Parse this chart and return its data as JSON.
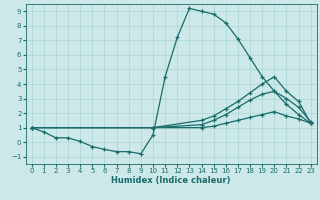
{
  "xlabel": "Humidex (Indice chaleur)",
  "bg_color": "#cce8e8",
  "line_color": "#1a6b6b",
  "grid_color": "#b0d8d8",
  "xlim": [
    -0.5,
    23.5
  ],
  "ylim": [
    -1.5,
    9.5
  ],
  "xticks": [
    0,
    1,
    2,
    3,
    4,
    5,
    6,
    7,
    8,
    9,
    10,
    11,
    12,
    13,
    14,
    15,
    16,
    17,
    18,
    19,
    20,
    21,
    22,
    23
  ],
  "yticks": [
    -1,
    0,
    1,
    2,
    3,
    4,
    5,
    6,
    7,
    8,
    9
  ],
  "curves": [
    {
      "x": [
        0,
        1,
        2,
        3,
        4,
        5,
        6,
        7,
        8,
        9,
        10,
        11,
        12,
        13,
        14,
        15,
        16,
        17,
        18,
        19,
        20,
        21,
        22,
        23
      ],
      "y": [
        1.0,
        0.7,
        0.3,
        0.3,
        0.05,
        -0.3,
        -0.5,
        -0.65,
        -0.65,
        -0.8,
        0.5,
        4.5,
        7.2,
        9.2,
        9.0,
        8.8,
        8.2,
        7.1,
        5.8,
        4.5,
        3.5,
        2.6,
        1.9,
        1.3
      ]
    },
    {
      "x": [
        0,
        10,
        14,
        15,
        16,
        17,
        18,
        19,
        20,
        21,
        22,
        23
      ],
      "y": [
        1.0,
        1.0,
        1.5,
        1.8,
        2.3,
        2.8,
        3.4,
        4.0,
        4.5,
        3.5,
        2.8,
        1.3
      ]
    },
    {
      "x": [
        0,
        10,
        14,
        15,
        16,
        17,
        18,
        19,
        20,
        21,
        22,
        23
      ],
      "y": [
        1.0,
        1.0,
        1.2,
        1.5,
        1.9,
        2.4,
        2.9,
        3.3,
        3.5,
        3.0,
        2.4,
        1.4
      ]
    },
    {
      "x": [
        0,
        10,
        14,
        15,
        16,
        17,
        18,
        19,
        20,
        21,
        22,
        23
      ],
      "y": [
        1.0,
        1.0,
        1.0,
        1.1,
        1.3,
        1.5,
        1.7,
        1.9,
        2.1,
        1.8,
        1.6,
        1.3
      ]
    }
  ]
}
